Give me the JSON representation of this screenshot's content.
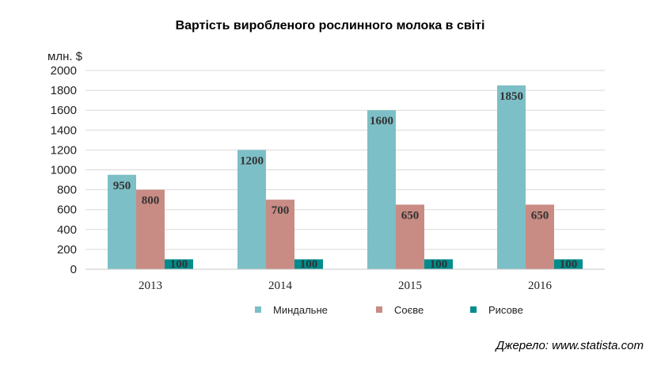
{
  "chart_data": {
    "type": "bar",
    "title": "Вартість виробленого рослинного молока в світі",
    "ylabel": "млн. $",
    "xlabel": "",
    "categories": [
      "2013",
      "2014",
      "2015",
      "2016"
    ],
    "ylim": [
      0,
      2000
    ],
    "yticks": [
      0,
      200,
      400,
      600,
      800,
      1000,
      1200,
      1400,
      1600,
      1800,
      2000
    ],
    "grid": true,
    "legend_position": "bottom",
    "series": [
      {
        "name": "Миндальне",
        "values": [
          950,
          1200,
          1600,
          1850
        ],
        "color": "#7dbfc6"
      },
      {
        "name": "Соєве",
        "values": [
          800,
          700,
          650,
          650
        ],
        "color": "#c98c84"
      },
      {
        "name": "Рисове",
        "values": [
          100,
          100,
          100,
          100
        ],
        "color": "#008c8c"
      }
    ]
  },
  "source": "Джерело: www.statista.com"
}
